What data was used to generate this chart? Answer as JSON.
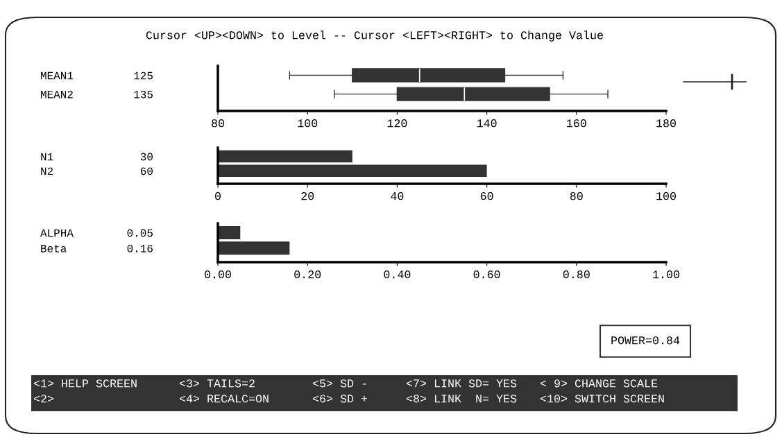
{
  "chart_data": [
    {
      "type": "box",
      "title": "Cursor <UP><DOWN> to Level -- Cursor <LEFT><RIGHT> to Change Value",
      "orientation": "horizontal",
      "categories": [
        "MEAN1         125",
        "MEAN2         135"
      ],
      "boxes": [
        {
          "low": 96,
          "q1": 110,
          "median": 125,
          "q3": 144,
          "high": 157
        },
        {
          "low": 106,
          "q1": 120,
          "median": 135,
          "q3": 154,
          "high": 167
        }
      ],
      "color": "#333333",
      "xlim": [
        80,
        180
      ],
      "xticks": [
        80,
        100,
        120,
        140,
        160,
        180
      ]
    },
    {
      "type": "bar",
      "orientation": "horizontal",
      "categories": [
        "N1             30",
        "N2             60"
      ],
      "values": [
        30,
        60
      ],
      "color": "#333333",
      "xlim": [
        0,
        100
      ],
      "xticks": [
        0,
        20,
        40,
        60,
        80,
        100
      ]
    },
    {
      "type": "bar",
      "orientation": "horizontal",
      "categories": [
        "ALPHA        0.05",
        "Beta         0.16"
      ],
      "values": [
        0.05,
        0.16
      ],
      "color": "#333333",
      "xlim": [
        0,
        1
      ],
      "xticks": [
        {
          "value": 0,
          "label": "0.00"
        },
        {
          "value": 0.2,
          "label": "0.20"
        },
        {
          "value": 0.4,
          "label": "0.40"
        },
        {
          "value": 0.6,
          "label": "0.60"
        },
        {
          "value": 0.8,
          "label": "0.80"
        },
        {
          "value": 1,
          "label": "1.00"
        }
      ],
      "annotations": [
        "POWER=0.84",
        "<1> HELP SCREEN",
        "<2>",
        "<3> TAILS=2",
        "<4> RECALC=ON",
        "<5> SD -",
        "<6> SD +",
        "<7> LINK SD= YES",
        "<8> LINK  N= YES",
        "< 9> CHANGE SCALE",
        "<10> SWITCH SCREEN"
      ]
    }
  ]
}
